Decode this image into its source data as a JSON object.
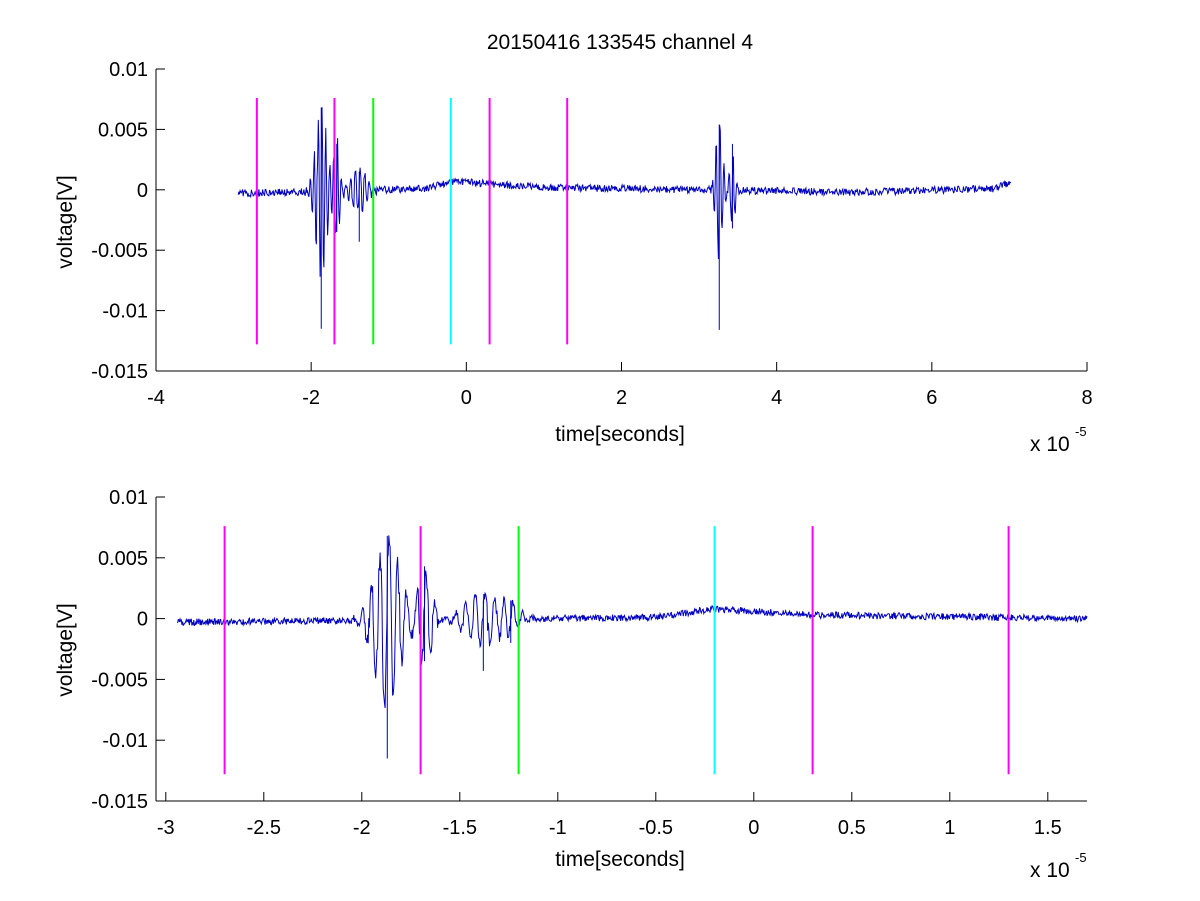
{
  "figure": {
    "title": "20150416 133545 channel 4",
    "colors": {
      "signal": "#0000bf",
      "magenta": "#ff00ff",
      "green": "#00ff00",
      "cyan": "#00ffff",
      "axis": "#000000"
    }
  },
  "chart_data": [
    {
      "type": "line",
      "title": "20150416 133545 channel 4",
      "xlabel": "time[seconds]",
      "ylabel": "voltage[V]",
      "x_exponent_label": "x 10",
      "x_exponent_power": "-5",
      "xlim": [
        -4,
        8
      ],
      "ylim": [
        -0.015,
        0.01
      ],
      "xticks": [
        -4,
        -2,
        0,
        2,
        4,
        6,
        8
      ],
      "xtick_labels": [
        "-4",
        "-2",
        "0",
        "2",
        "4",
        "6",
        "8"
      ],
      "yticks": [
        0.01,
        0.005,
        0,
        -0.005,
        -0.01,
        -0.015
      ],
      "ytick_labels": [
        "0.01",
        "0.005",
        "0",
        "-0.005",
        "-0.01",
        "-0.015"
      ],
      "grid": false,
      "series": [
        {
          "color": "#0000bf",
          "x_range": [
            -2.94,
            7.02
          ],
          "noise_amplitude": 0.0003,
          "baseline": [
            [
              -2.94,
              -0.0003
            ],
            [
              -0.5,
              0.0001
            ],
            [
              -0.2,
              0.0007
            ],
            [
              1.0,
              0.0002
            ],
            [
              5.0,
              -0.0002
            ],
            [
              6.8,
              0.0001
            ],
            [
              7.02,
              0.0006
            ]
          ],
          "bursts": [
            {
              "center": -1.87,
              "amplitude": 0.0072,
              "width": 0.1,
              "period": 0.05,
              "min": -0.0115,
              "max": 0.0068
            },
            {
              "center": -1.67,
              "amplitude": 0.0045,
              "width": 0.05,
              "period": 0.05,
              "min": -0.0035,
              "max": 0.0038
            },
            {
              "center": -1.38,
              "amplitude": 0.0018,
              "width": 0.14,
              "period": 0.06,
              "min": -0.0043,
              "max": 0.0015
            },
            {
              "center": 3.26,
              "amplitude": 0.006,
              "width": 0.06,
              "period": 0.05,
              "min": -0.0116,
              "max": 0.0054
            },
            {
              "center": 3.43,
              "amplitude": 0.003,
              "width": 0.05,
              "period": 0.05,
              "min": -0.0032,
              "max": 0.0038
            }
          ]
        }
      ],
      "vlines": [
        {
          "x": -2.7,
          "y0": -0.0128,
          "y1": 0.0076,
          "color": "#ff00ff"
        },
        {
          "x": -1.7,
          "y0": -0.0128,
          "y1": 0.0076,
          "color": "#ff00ff"
        },
        {
          "x": -1.2,
          "y0": -0.0128,
          "y1": 0.0076,
          "color": "#00ff00"
        },
        {
          "x": -0.2,
          "y0": -0.0128,
          "y1": 0.0076,
          "color": "#00ffff"
        },
        {
          "x": 0.3,
          "y0": -0.0128,
          "y1": 0.0076,
          "color": "#ff00ff"
        },
        {
          "x": 1.3,
          "y0": -0.0128,
          "y1": 0.0076,
          "color": "#ff00ff"
        }
      ]
    },
    {
      "type": "line",
      "title": "",
      "xlabel": "time[seconds]",
      "ylabel": "voltage[V]",
      "x_exponent_label": "x 10",
      "x_exponent_power": "-5",
      "xlim": [
        -3.05,
        1.7
      ],
      "ylim": [
        -0.015,
        0.01
      ],
      "xticks": [
        -3,
        -2.5,
        -2,
        -1.5,
        -1,
        -0.5,
        0,
        0.5,
        1,
        1.5
      ],
      "xtick_labels": [
        "-3",
        "-2.5",
        "-2",
        "-1.5",
        "-1",
        "-0.5",
        "0",
        "0.5",
        "1",
        "1.5"
      ],
      "yticks": [
        0.01,
        0.005,
        0,
        -0.005,
        -0.01,
        -0.015
      ],
      "ytick_labels": [
        "0.01",
        "0.005",
        "0",
        "-0.005",
        "-0.01",
        "-0.015"
      ],
      "grid": false,
      "series": [
        {
          "color": "#0000bf",
          "x_range": [
            -2.94,
            1.7
          ],
          "noise_amplitude": 0.00028,
          "baseline": [
            [
              -2.94,
              -0.0003
            ],
            [
              -0.5,
              0.0001
            ],
            [
              -0.2,
              0.0008
            ],
            [
              0.3,
              0.0003
            ],
            [
              1.7,
              0.0
            ]
          ],
          "bursts": [
            {
              "center": -1.87,
              "amplitude": 0.0072,
              "width": 0.09,
              "period": 0.045,
              "min": -0.0115,
              "max": 0.0068
            },
            {
              "center": -1.68,
              "amplitude": 0.0042,
              "width": 0.05,
              "period": 0.045,
              "min": -0.0035,
              "max": 0.0043
            },
            {
              "center": -1.38,
              "amplitude": 0.0022,
              "width": 0.12,
              "period": 0.05,
              "min": -0.0043,
              "max": 0.0015
            },
            {
              "center": -1.24,
              "amplitude": 0.0012,
              "width": 0.06,
              "period": 0.05,
              "min": -0.002,
              "max": 0.0015
            }
          ]
        }
      ],
      "vlines": [
        {
          "x": -2.7,
          "y0": -0.0128,
          "y1": 0.0076,
          "color": "#ff00ff"
        },
        {
          "x": -1.7,
          "y0": -0.0128,
          "y1": 0.0076,
          "color": "#ff00ff"
        },
        {
          "x": -1.2,
          "y0": -0.0128,
          "y1": 0.0076,
          "color": "#00ff00"
        },
        {
          "x": -0.2,
          "y0": -0.0128,
          "y1": 0.0076,
          "color": "#00ffff"
        },
        {
          "x": 0.3,
          "y0": -0.0128,
          "y1": 0.0076,
          "color": "#ff00ff"
        },
        {
          "x": 1.3,
          "y0": -0.0128,
          "y1": 0.0076,
          "color": "#ff00ff"
        }
      ]
    }
  ]
}
